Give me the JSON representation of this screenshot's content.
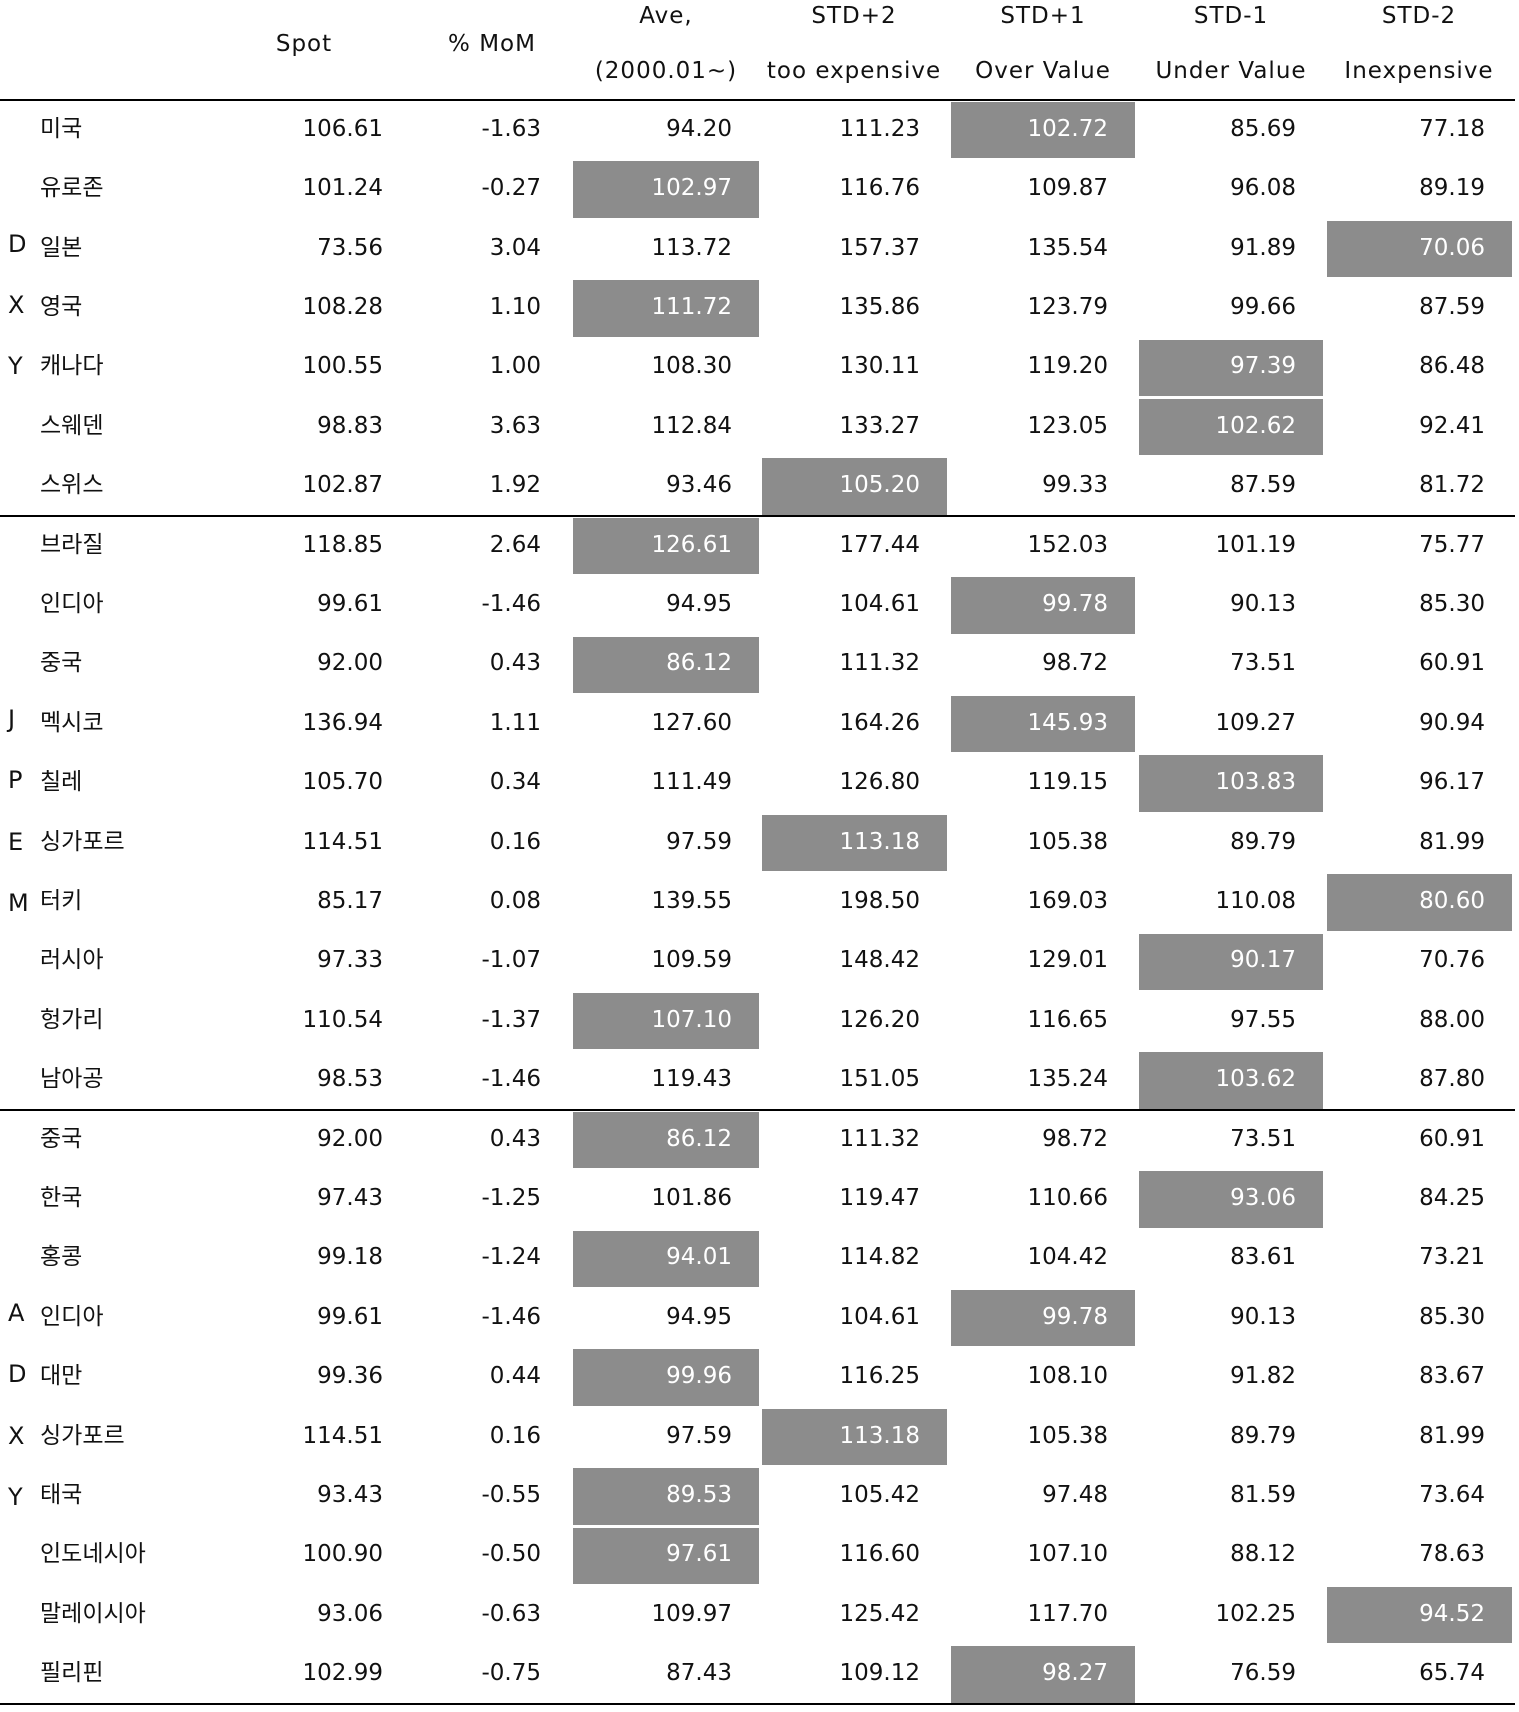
{
  "table": {
    "highlight_color": "#8c8c8c",
    "header": [
      {
        "lines": [
          "Spot"
        ]
      },
      {
        "lines": [
          "% MoM"
        ]
      },
      {
        "lines": [
          "Ave,",
          "(2000.01~)"
        ]
      },
      {
        "lines": [
          "STD+2",
          "too expensive"
        ]
      },
      {
        "lines": [
          "STD+1",
          "Over Value"
        ]
      },
      {
        "lines": [
          "STD-1",
          "Under Value"
        ]
      },
      {
        "lines": [
          "STD-2",
          "Inexpensive"
        ]
      }
    ],
    "groups": [
      {
        "label": [
          "D",
          "X",
          "Y"
        ],
        "rows": [
          {
            "name": "미국",
            "values": [
              "106.61",
              "-1.63",
              "94.20",
              "111.23",
              "102.72",
              "85.69",
              "77.18"
            ],
            "highlight": 4
          },
          {
            "name": "유로존",
            "values": [
              "101.24",
              "-0.27",
              "102.97",
              "116.76",
              "109.87",
              "96.08",
              "89.19"
            ],
            "highlight": 2
          },
          {
            "name": "일본",
            "values": [
              "73.56",
              "3.04",
              "113.72",
              "157.37",
              "135.54",
              "91.89",
              "70.06"
            ],
            "highlight": 6
          },
          {
            "name": "영국",
            "values": [
              "108.28",
              "1.10",
              "111.72",
              "135.86",
              "123.79",
              "99.66",
              "87.59"
            ],
            "highlight": 2
          },
          {
            "name": "캐나다",
            "values": [
              "100.55",
              "1.00",
              "108.30",
              "130.11",
              "119.20",
              "97.39",
              "86.48"
            ],
            "highlight": 5
          },
          {
            "name": "스웨덴",
            "values": [
              "98.83",
              "3.63",
              "112.84",
              "133.27",
              "123.05",
              "102.62",
              "92.41"
            ],
            "highlight": 5
          },
          {
            "name": "스위스",
            "values": [
              "102.87",
              "1.92",
              "93.46",
              "105.20",
              "99.33",
              "87.59",
              "81.72"
            ],
            "highlight": 3
          }
        ]
      },
      {
        "label": [
          "J",
          "P",
          "E",
          "M"
        ],
        "rows": [
          {
            "name": "브라질",
            "values": [
              "118.85",
              "2.64",
              "126.61",
              "177.44",
              "152.03",
              "101.19",
              "75.77"
            ],
            "highlight": 2
          },
          {
            "name": "인디아",
            "values": [
              "99.61",
              "-1.46",
              "94.95",
              "104.61",
              "99.78",
              "90.13",
              "85.30"
            ],
            "highlight": 4
          },
          {
            "name": "중국",
            "values": [
              "92.00",
              "0.43",
              "86.12",
              "111.32",
              "98.72",
              "73.51",
              "60.91"
            ],
            "highlight": 2
          },
          {
            "name": "멕시코",
            "values": [
              "136.94",
              "1.11",
              "127.60",
              "164.26",
              "145.93",
              "109.27",
              "90.94"
            ],
            "highlight": 4
          },
          {
            "name": "칠레",
            "values": [
              "105.70",
              "0.34",
              "111.49",
              "126.80",
              "119.15",
              "103.83",
              "96.17"
            ],
            "highlight": 5
          },
          {
            "name": "싱가포르",
            "values": [
              "114.51",
              "0.16",
              "97.59",
              "113.18",
              "105.38",
              "89.79",
              "81.99"
            ],
            "highlight": 3
          },
          {
            "name": "터키",
            "values": [
              "85.17",
              "0.08",
              "139.55",
              "198.50",
              "169.03",
              "110.08",
              "80.60"
            ],
            "highlight": 6
          },
          {
            "name": "러시아",
            "values": [
              "97.33",
              "-1.07",
              "109.59",
              "148.42",
              "129.01",
              "90.17",
              "70.76"
            ],
            "highlight": 5
          },
          {
            "name": "헝가리",
            "values": [
              "110.54",
              "-1.37",
              "107.10",
              "126.20",
              "116.65",
              "97.55",
              "88.00"
            ],
            "highlight": 2
          },
          {
            "name": "남아공",
            "values": [
              "98.53",
              "-1.46",
              "119.43",
              "151.05",
              "135.24",
              "103.62",
              "87.80"
            ],
            "highlight": 5
          }
        ]
      },
      {
        "label": [
          "A",
          "D",
          "X",
          "Y"
        ],
        "rows": [
          {
            "name": "중국",
            "values": [
              "92.00",
              "0.43",
              "86.12",
              "111.32",
              "98.72",
              "73.51",
              "60.91"
            ],
            "highlight": 2
          },
          {
            "name": "한국",
            "values": [
              "97.43",
              "-1.25",
              "101.86",
              "119.47",
              "110.66",
              "93.06",
              "84.25"
            ],
            "highlight": 5
          },
          {
            "name": "홍콩",
            "values": [
              "99.18",
              "-1.24",
              "94.01",
              "114.82",
              "104.42",
              "83.61",
              "73.21"
            ],
            "highlight": 2
          },
          {
            "name": "인디아",
            "values": [
              "99.61",
              "-1.46",
              "94.95",
              "104.61",
              "99.78",
              "90.13",
              "85.30"
            ],
            "highlight": 4
          },
          {
            "name": "대만",
            "values": [
              "99.36",
              "0.44",
              "99.96",
              "116.25",
              "108.10",
              "91.82",
              "83.67"
            ],
            "highlight": 2
          },
          {
            "name": "싱가포르",
            "values": [
              "114.51",
              "0.16",
              "97.59",
              "113.18",
              "105.38",
              "89.79",
              "81.99"
            ],
            "highlight": 3
          },
          {
            "name": "태국",
            "values": [
              "93.43",
              "-0.55",
              "89.53",
              "105.42",
              "97.48",
              "81.59",
              "73.64"
            ],
            "highlight": 2
          },
          {
            "name": "인도네시아",
            "values": [
              "100.90",
              "-0.50",
              "97.61",
              "116.60",
              "107.10",
              "88.12",
              "78.63"
            ],
            "highlight": 2
          },
          {
            "name": "말레이시아",
            "values": [
              "93.06",
              "-0.63",
              "109.97",
              "125.42",
              "117.70",
              "102.25",
              "94.52"
            ],
            "highlight": 6
          },
          {
            "name": "필리핀",
            "values": [
              "102.99",
              "-0.75",
              "87.43",
              "109.12",
              "98.27",
              "76.59",
              "65.74"
            ],
            "highlight": 4
          }
        ]
      }
    ]
  }
}
